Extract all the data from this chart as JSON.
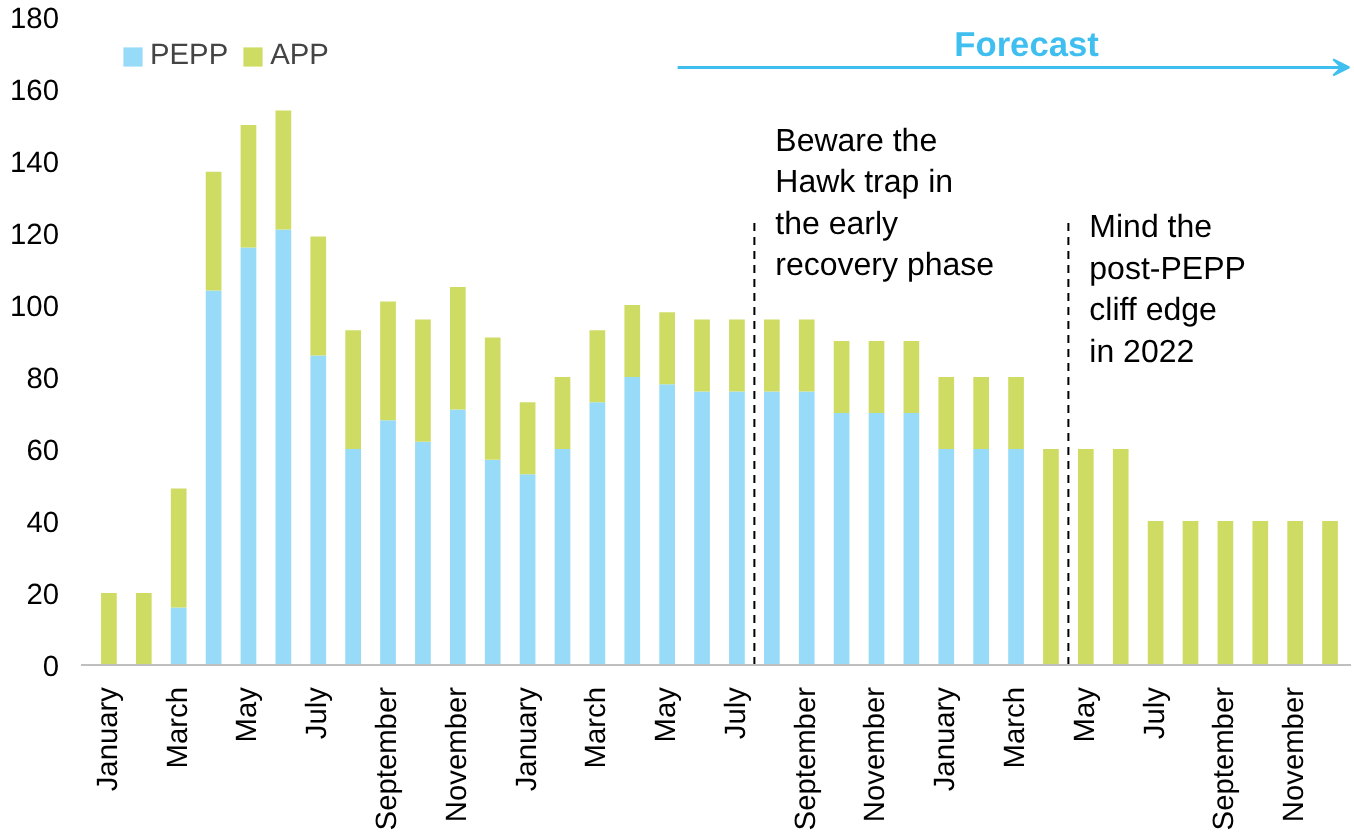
{
  "chart_data": {
    "type": "bar",
    "stacked": true,
    "categories": [
      "January",
      null,
      "March",
      null,
      "May",
      null,
      "July",
      null,
      "September",
      null,
      "November",
      null,
      "January",
      null,
      "March",
      null,
      "May",
      null,
      "July",
      null,
      "September",
      null,
      "November",
      null,
      "January",
      null,
      "March",
      null,
      "May",
      null,
      "July",
      null,
      "September",
      null,
      "November",
      null
    ],
    "series": [
      {
        "name": "PEPP",
        "color": "#97dbf8",
        "values": [
          0,
          0,
          16,
          104,
          116,
          121,
          86,
          60,
          68,
          62,
          71,
          57,
          53,
          60,
          73,
          80,
          78,
          76,
          76,
          76,
          76,
          70,
          70,
          70,
          60,
          60,
          60,
          0,
          0,
          0,
          0,
          0,
          0,
          0,
          0,
          0
        ]
      },
      {
        "name": "APP",
        "color": "#cfdc63",
        "values": [
          20,
          20,
          33,
          33,
          34,
          33,
          33,
          33,
          33,
          34,
          34,
          34,
          20,
          20,
          20,
          20,
          20,
          20,
          20,
          20,
          20,
          20,
          20,
          20,
          20,
          20,
          20,
          60,
          60,
          60,
          40,
          40,
          40,
          40,
          40,
          40
        ]
      }
    ],
    "ylim": [
      0,
      180
    ],
    "yticks": [
      0,
      20,
      40,
      60,
      80,
      100,
      120,
      140,
      160,
      180
    ],
    "grid": false,
    "legend": "top left",
    "annotations": [
      "Forecast",
      "Beware the\nHawk trap in\nthe early\nrecovery phase",
      "Mind the\npost-PEPP\ncliff edge\nin 2022"
    ]
  }
}
